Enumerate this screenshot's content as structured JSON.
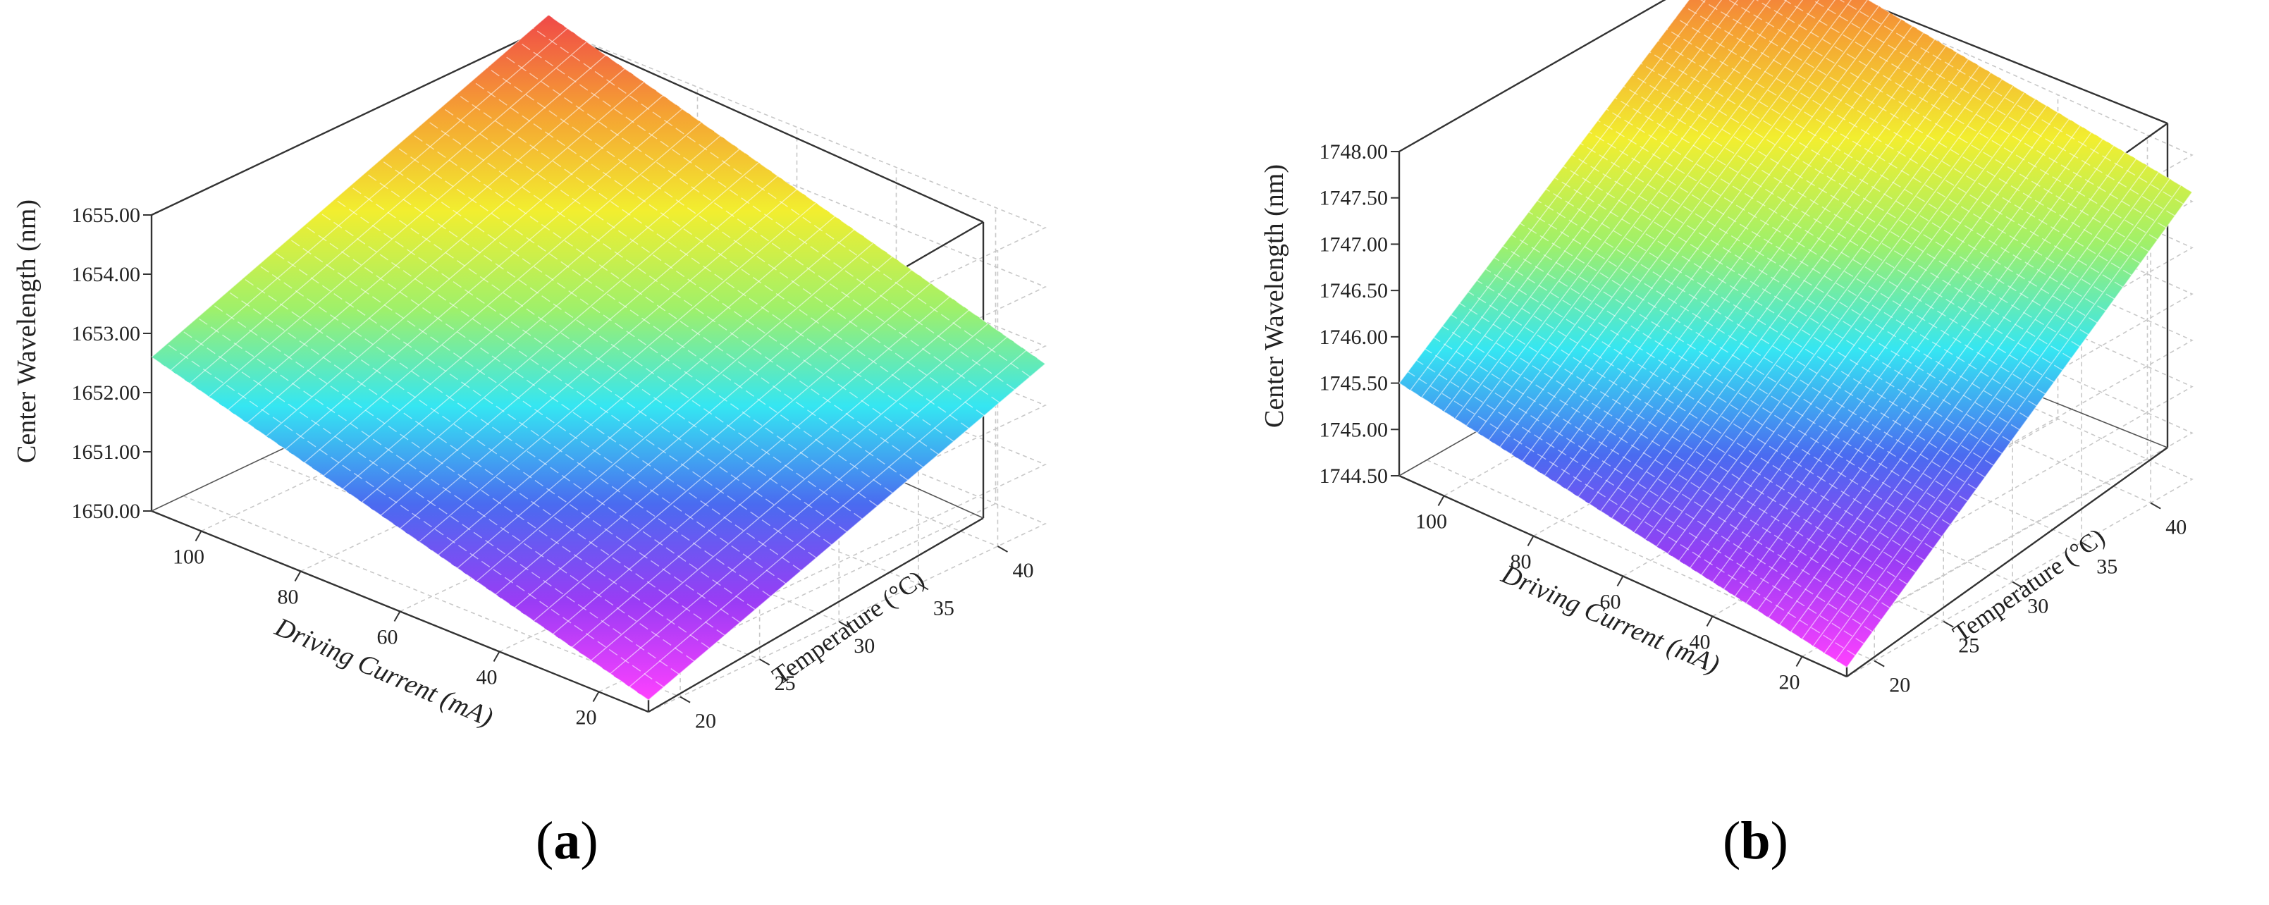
{
  "chart_data": [
    {
      "type": "surface",
      "panel_label": "a",
      "xlabel": "Driving Current (mA)",
      "ylabel": "Temperature (°C)",
      "zlabel": "Center Wavelength (nm)",
      "x_ticks": [
        "20",
        "40",
        "60",
        "80",
        "100"
      ],
      "y_ticks": [
        "20",
        "25",
        "30",
        "35",
        "40"
      ],
      "z_ticks": [
        "1650.00",
        "1651.00",
        "1652.00",
        "1653.00",
        "1654.00",
        "1655.00"
      ],
      "x_range": [
        10,
        110
      ],
      "y_range": [
        18,
        43
      ],
      "z_range": [
        1650,
        1655
      ],
      "corners": {
        "x10_y18": 1650.2,
        "x110_y18": 1652.6,
        "x10_y43": 1652.7,
        "x110_y43": 1655.2
      },
      "colormap": [
        "#ff40ff",
        "#9a3cf5",
        "#4a6bf0",
        "#35e6f2",
        "#9ff06a",
        "#f2ee2f",
        "#f5a233",
        "#f04848"
      ]
    },
    {
      "type": "surface",
      "panel_label": "b",
      "xlabel": "Driving Current (mA)",
      "ylabel": "Temperature (°C)",
      "zlabel": "Center Wavelength (nm)",
      "x_ticks": [
        "20",
        "40",
        "60",
        "80",
        "100"
      ],
      "y_ticks": [
        "20",
        "25",
        "30",
        "35",
        "40"
      ],
      "z_ticks": [
        "1744.50",
        "1745.00",
        "1745.50",
        "1746.00",
        "1746.50",
        "1747.00",
        "1747.50",
        "1748.00"
      ],
      "x_range": [
        10,
        110
      ],
      "y_range": [
        18,
        43
      ],
      "z_range": [
        1744.5,
        1748
      ],
      "corners": {
        "x10_y18": 1744.6,
        "x110_y18": 1745.5,
        "x10_y43": 1747.6,
        "x110_y43": 1748.3
      },
      "colormap": [
        "#ff40ff",
        "#9a3cf5",
        "#4a6bf0",
        "#35e6f2",
        "#9ff06a",
        "#f2ee2f",
        "#f5a233",
        "#f04848"
      ]
    }
  ]
}
